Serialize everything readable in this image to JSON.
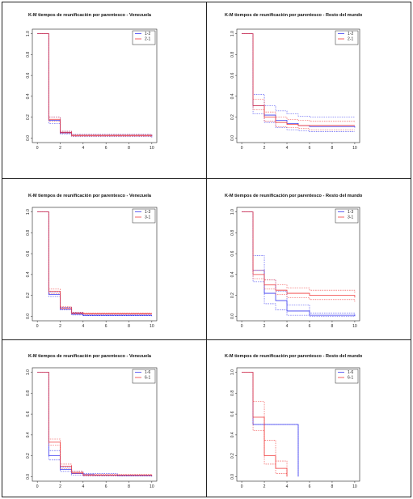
{
  "colors": {
    "blue": "#3b3bf0",
    "red": "#f03b3b"
  },
  "chart_data": [
    {
      "type": "line",
      "step": true,
      "title": "K-M tiempos de reunificación por parentesco - Venezuela",
      "xlabel": "",
      "ylabel": "",
      "xlim": [
        0,
        10
      ],
      "ylim": [
        0,
        1
      ],
      "xticks": [
        "0",
        "2",
        "4",
        "6",
        "8",
        "10"
      ],
      "yticks": [
        "0.0",
        "0.2",
        "0.4",
        "0.6",
        "0.8",
        "1.0"
      ],
      "legend": "top-right",
      "grid": false,
      "series": [
        {
          "name": "1-2",
          "color": "blue",
          "x": [
            0,
            1,
            2,
            3,
            10
          ],
          "y": [
            1,
            0.17,
            0.05,
            0.025,
            0.015
          ]
        },
        {
          "name": "2-1",
          "color": "red",
          "x": [
            0,
            1,
            2,
            3,
            10
          ],
          "y": [
            1,
            0.18,
            0.055,
            0.025,
            0.02
          ]
        },
        {
          "color": "blue",
          "dashed": true,
          "x": [
            0,
            1,
            2,
            3,
            10
          ],
          "y": [
            1,
            0.14,
            0.04,
            0.015,
            0.005
          ]
        },
        {
          "color": "blue",
          "dashed": true,
          "x": [
            0,
            1,
            2,
            3,
            10
          ],
          "y": [
            1,
            0.2,
            0.065,
            0.035,
            0.025
          ]
        },
        {
          "color": "red",
          "dashed": true,
          "x": [
            0,
            1,
            2,
            3,
            10
          ],
          "y": [
            1,
            0.16,
            0.045,
            0.018,
            0.01
          ]
        },
        {
          "color": "red",
          "dashed": true,
          "x": [
            0,
            1,
            2,
            3,
            10
          ],
          "y": [
            1,
            0.2,
            0.065,
            0.033,
            0.028
          ]
        }
      ]
    },
    {
      "type": "line",
      "step": true,
      "title": "K-M tiempos de reunificación por parentesco - Resto del mundo",
      "xlabel": "",
      "ylabel": "",
      "xlim": [
        0,
        10
      ],
      "ylim": [
        0,
        1
      ],
      "xticks": [
        "0",
        "2",
        "4",
        "6",
        "8",
        "10"
      ],
      "yticks": [
        "0.0",
        "0.2",
        "0.4",
        "0.6",
        "0.8",
        "1.0"
      ],
      "legend": "top-right",
      "grid": false,
      "series": [
        {
          "name": "1-2",
          "color": "blue",
          "x": [
            0,
            1,
            2,
            3,
            4,
            5,
            6,
            10
          ],
          "y": [
            1,
            0.31,
            0.22,
            0.17,
            0.14,
            0.12,
            0.11,
            0.1
          ]
        },
        {
          "name": "2-1",
          "color": "red",
          "x": [
            0,
            1,
            2,
            3,
            4,
            5,
            6,
            10
          ],
          "y": [
            1,
            0.31,
            0.2,
            0.15,
            0.13,
            0.12,
            0.12,
            0.12
          ]
        },
        {
          "color": "blue",
          "dashed": true,
          "x": [
            0,
            1,
            2,
            3,
            4,
            5,
            6,
            10
          ],
          "y": [
            1,
            0.42,
            0.31,
            0.26,
            0.23,
            0.21,
            0.2,
            0.2
          ]
        },
        {
          "color": "blue",
          "dashed": true,
          "x": [
            0,
            1,
            2,
            3,
            4,
            5,
            6,
            10
          ],
          "y": [
            1,
            0.23,
            0.15,
            0.1,
            0.08,
            0.07,
            0.06,
            0.06
          ]
        },
        {
          "color": "red",
          "dashed": true,
          "x": [
            0,
            1,
            2,
            3,
            4,
            5,
            6,
            10
          ],
          "y": [
            1,
            0.37,
            0.25,
            0.2,
            0.18,
            0.17,
            0.16,
            0.15
          ]
        },
        {
          "color": "red",
          "dashed": true,
          "x": [
            0,
            1,
            2,
            3,
            4,
            5,
            6,
            10
          ],
          "y": [
            1,
            0.27,
            0.16,
            0.11,
            0.1,
            0.09,
            0.08,
            0.08
          ]
        }
      ]
    },
    {
      "type": "line",
      "step": true,
      "title": "K-M tiempos de reunificación por parentesco - Venezuela",
      "xlabel": "",
      "ylabel": "",
      "xlim": [
        0,
        10
      ],
      "ylim": [
        0,
        1
      ],
      "xticks": [
        "0",
        "2",
        "4",
        "6",
        "8",
        "10"
      ],
      "yticks": [
        "0.0",
        "0.2",
        "0.4",
        "0.6",
        "0.8",
        "1.0"
      ],
      "legend": "top-right",
      "grid": false,
      "series": [
        {
          "name": "1-3",
          "color": "blue",
          "x": [
            0,
            1,
            2,
            3,
            4,
            10
          ],
          "y": [
            1,
            0.21,
            0.07,
            0.02,
            0.01,
            0.01
          ]
        },
        {
          "name": "3-1",
          "color": "red",
          "x": [
            0,
            1,
            2,
            3,
            4,
            10
          ],
          "y": [
            1,
            0.24,
            0.08,
            0.03,
            0.025,
            0.025
          ]
        },
        {
          "color": "blue",
          "dashed": true,
          "x": [
            0,
            1,
            2,
            3,
            4,
            10
          ],
          "y": [
            1,
            0.19,
            0.06,
            0.012,
            0.005,
            0.0
          ]
        },
        {
          "color": "blue",
          "dashed": true,
          "x": [
            0,
            1,
            2,
            3,
            4,
            10
          ],
          "y": [
            1,
            0.23,
            0.085,
            0.035,
            0.02,
            0.02
          ]
        },
        {
          "color": "red",
          "dashed": true,
          "x": [
            0,
            1,
            2,
            3,
            4,
            10
          ],
          "y": [
            1,
            0.22,
            0.07,
            0.025,
            0.02,
            0.02
          ]
        },
        {
          "color": "red",
          "dashed": true,
          "x": [
            0,
            1,
            2,
            3,
            4,
            10
          ],
          "y": [
            1,
            0.26,
            0.09,
            0.04,
            0.03,
            0.03
          ]
        }
      ]
    },
    {
      "type": "line",
      "step": true,
      "title": "K-M tiempos de reunificación por parentesco - Resto del mundo",
      "xlabel": "",
      "ylabel": "",
      "xlim": [
        0,
        10
      ],
      "ylim": [
        0,
        1
      ],
      "xticks": [
        "0",
        "2",
        "4",
        "6",
        "8",
        "10"
      ],
      "yticks": [
        "0.0",
        "0.2",
        "0.4",
        "0.6",
        "0.8",
        "1.0"
      ],
      "legend": "top-right",
      "grid": false,
      "series": [
        {
          "name": "1-3",
          "color": "blue",
          "x": [
            0,
            1,
            2,
            3,
            4,
            6,
            10
          ],
          "y": [
            1,
            0.44,
            0.22,
            0.15,
            0.05,
            0.01,
            0.0
          ]
        },
        {
          "name": "3-1",
          "color": "red",
          "x": [
            0,
            1,
            2,
            3,
            4,
            6,
            10
          ],
          "y": [
            1,
            0.4,
            0.3,
            0.25,
            0.22,
            0.2,
            0.18
          ]
        },
        {
          "color": "blue",
          "dashed": true,
          "x": [
            0,
            1,
            2,
            3,
            4,
            6,
            10
          ],
          "y": [
            1,
            0.58,
            0.35,
            0.24,
            0.11,
            0.03,
            0.0
          ]
        },
        {
          "color": "blue",
          "dashed": true,
          "x": [
            0,
            1,
            2,
            3,
            4,
            6,
            10
          ],
          "y": [
            1,
            0.33,
            0.12,
            0.06,
            0.01,
            0.0,
            0.0
          ]
        },
        {
          "color": "red",
          "dashed": true,
          "x": [
            0,
            1,
            2,
            3,
            4,
            6,
            10
          ],
          "y": [
            1,
            0.44,
            0.35,
            0.3,
            0.27,
            0.25,
            0.22
          ]
        },
        {
          "color": "red",
          "dashed": true,
          "x": [
            0,
            1,
            2,
            3,
            4,
            6,
            10
          ],
          "y": [
            1,
            0.36,
            0.26,
            0.21,
            0.18,
            0.16,
            0.14
          ]
        }
      ]
    },
    {
      "type": "line",
      "step": true,
      "title": "K-M tiempos de reunificación por parentesco - Venezuela",
      "xlabel": "",
      "ylabel": "",
      "xlim": [
        0,
        10
      ],
      "ylim": [
        0,
        1
      ],
      "xticks": [
        "0",
        "2",
        "4",
        "6",
        "8",
        "10"
      ],
      "yticks": [
        "0.0",
        "0.2",
        "0.4",
        "0.6",
        "0.8",
        "1.0"
      ],
      "legend": "top-right",
      "grid": false,
      "series": [
        {
          "name": "1-6",
          "color": "blue",
          "x": [
            0,
            1,
            2,
            3,
            4,
            5,
            7,
            10
          ],
          "y": [
            1,
            0.2,
            0.07,
            0.03,
            0.02,
            0.015,
            0.01,
            0.01
          ]
        },
        {
          "name": "6-1",
          "color": "red",
          "x": [
            0,
            1,
            2,
            3,
            4,
            10
          ],
          "y": [
            1,
            0.33,
            0.1,
            0.04,
            0.015,
            0.01
          ]
        },
        {
          "color": "blue",
          "dashed": true,
          "x": [
            0,
            1,
            2,
            3,
            4,
            7,
            10
          ],
          "y": [
            1,
            0.25,
            0.09,
            0.05,
            0.03,
            0.01,
            0.01
          ]
        },
        {
          "color": "blue",
          "dashed": true,
          "x": [
            0,
            1,
            2,
            3,
            4,
            10
          ],
          "y": [
            1,
            0.16,
            0.05,
            0.015,
            0.005,
            0.0
          ]
        },
        {
          "color": "red",
          "dashed": true,
          "x": [
            0,
            1,
            2,
            3,
            4,
            10
          ],
          "y": [
            1,
            0.36,
            0.12,
            0.05,
            0.02,
            0.015
          ]
        },
        {
          "color": "red",
          "dashed": true,
          "x": [
            0,
            1,
            2,
            3,
            4,
            10
          ],
          "y": [
            1,
            0.3,
            0.08,
            0.03,
            0.01,
            0.005
          ]
        }
      ]
    },
    {
      "type": "line",
      "step": true,
      "title": "K-M tiempos de reunificación por parentesco - Resto del mundo",
      "xlabel": "",
      "ylabel": "",
      "xlim": [
        0,
        10
      ],
      "ylim": [
        0,
        1
      ],
      "xticks": [
        "0",
        "2",
        "4",
        "6",
        "8",
        "10"
      ],
      "yticks": [
        "0.0",
        "0.2",
        "0.4",
        "0.6",
        "0.8",
        "1.0"
      ],
      "legend": "top-right",
      "grid": false,
      "series": [
        {
          "name": "1-6",
          "color": "blue",
          "x": [
            0,
            1,
            5
          ],
          "y": [
            1,
            0.5,
            0.0
          ]
        },
        {
          "name": "6-1",
          "color": "red",
          "x": [
            0,
            1,
            2,
            3,
            4
          ],
          "y": [
            1,
            0.57,
            0.2,
            0.08,
            0.0
          ]
        },
        {
          "color": "blue",
          "dashed": true,
          "x": [
            0,
            1,
            5
          ],
          "y": [
            1,
            0.5,
            0.0
          ]
        },
        {
          "color": "red",
          "dashed": true,
          "x": [
            0,
            1,
            2,
            3,
            4
          ],
          "y": [
            1,
            0.72,
            0.35,
            0.15,
            0.0
          ]
        },
        {
          "color": "red",
          "dashed": true,
          "x": [
            0,
            1,
            2,
            3,
            4
          ],
          "y": [
            1,
            0.44,
            0.12,
            0.03,
            0.0
          ]
        }
      ]
    }
  ]
}
